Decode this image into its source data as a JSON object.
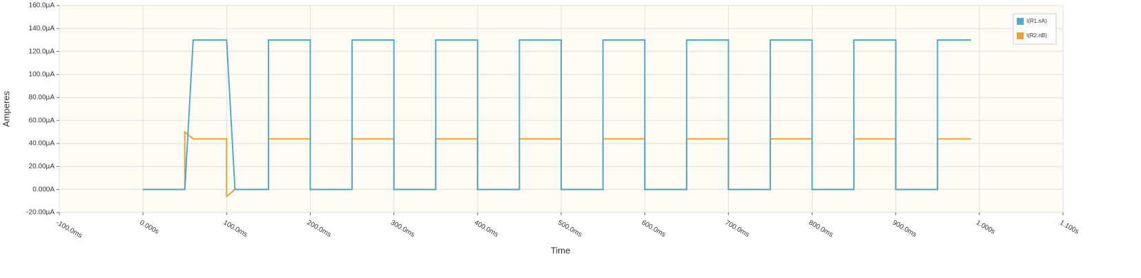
{
  "chart_data": {
    "type": "line",
    "x_label": "Time",
    "y_label": "Amperes",
    "x": [
      0,
      50,
      50,
      60,
      100,
      100,
      110,
      150,
      150,
      200,
      200,
      250,
      250,
      300,
      300,
      350,
      350,
      400,
      400,
      450,
      450,
      500,
      500,
      550,
      550,
      600,
      600,
      650,
      650,
      700,
      700,
      750,
      750,
      800,
      800,
      850,
      850,
      900,
      900,
      950,
      950,
      990
    ],
    "series": [
      {
        "name": "I(R1.nA)",
        "color": "#4bacc6",
        "values": [
          0,
          0,
          0,
          130,
          130,
          130,
          0,
          0,
          130,
          130,
          0,
          0,
          130,
          130,
          0,
          0,
          130,
          130,
          0,
          0,
          130,
          130,
          0,
          0,
          130,
          130,
          0,
          0,
          130,
          130,
          0,
          0,
          130,
          130,
          0,
          0,
          130,
          130,
          0,
          0,
          130,
          130
        ]
      },
      {
        "name": "I(R2.nB)",
        "color": "#f0a030",
        "values": [
          0,
          0,
          50,
          44,
          44,
          -6,
          0,
          0,
          44,
          44,
          0,
          0,
          44,
          44,
          0,
          0,
          44,
          44,
          0,
          0,
          44,
          44,
          0,
          0,
          44,
          44,
          0,
          0,
          44,
          44,
          0,
          0,
          44,
          44,
          0,
          0,
          44,
          44,
          0,
          0,
          44,
          44
        ]
      }
    ],
    "xlim": [
      -100,
      1100
    ],
    "xticks": [
      {
        "value": -100,
        "label": "-100.0ms"
      },
      {
        "value": 0,
        "label": "0.000s"
      },
      {
        "value": 100,
        "label": "100.0ms"
      },
      {
        "value": 200,
        "label": "200.0ms"
      },
      {
        "value": 300,
        "label": "300.0ms"
      },
      {
        "value": 400,
        "label": "400.0ms"
      },
      {
        "value": 500,
        "label": "500.0ms"
      },
      {
        "value": 600,
        "label": "600.0ms"
      },
      {
        "value": 700,
        "label": "700.0ms"
      },
      {
        "value": 800,
        "label": "800.0ms"
      },
      {
        "value": 900,
        "label": "900.0ms"
      },
      {
        "value": 1000,
        "label": "1.000s"
      },
      {
        "value": 1100,
        "label": "1.100s"
      }
    ],
    "ylim": [
      -20,
      160
    ],
    "yticks": [
      {
        "value": -20,
        "label": "-20.00µA"
      },
      {
        "value": 0,
        "label": "0.000A"
      },
      {
        "value": 20,
        "label": "20.00µA"
      },
      {
        "value": 40,
        "label": "40.00µA"
      },
      {
        "value": 60,
        "label": "60.00µA"
      },
      {
        "value": 80,
        "label": "80.00µA"
      },
      {
        "value": 100,
        "label": "100.0µA"
      },
      {
        "value": 120,
        "label": "120.0µA"
      },
      {
        "value": 140,
        "label": "140.0µA"
      },
      {
        "value": 160,
        "label": "160.0µA"
      }
    ],
    "grid": true,
    "legend": "top-right"
  }
}
